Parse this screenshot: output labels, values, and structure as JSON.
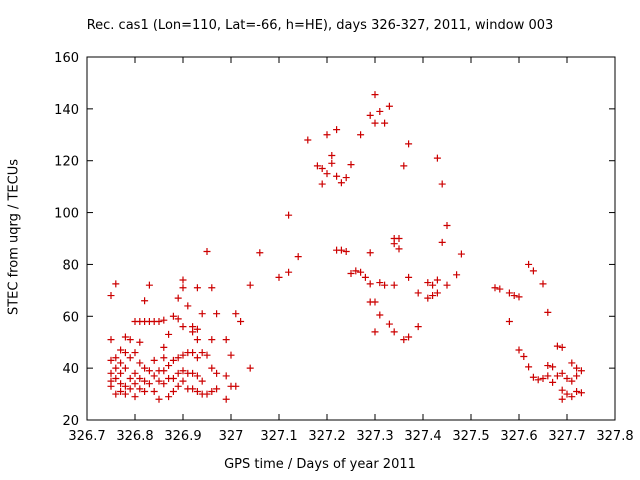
{
  "chart_data": {
    "type": "scatter",
    "title": "Rec. cas1 (Lon=110, Lat=-66, h=HE), days 326-327, 2011, window 003",
    "xlabel": "GPS time / Days of year 2011",
    "ylabel": "STEC from uqrg / TECUs",
    "xlim": [
      326.7,
      327.8
    ],
    "ylim": [
      20,
      160
    ],
    "x_ticks": [
      "326.7",
      "326.8",
      "326.9",
      "327",
      "327.1",
      "327.2",
      "327.3",
      "327.4",
      "327.5",
      "327.6",
      "327.7",
      "327.8"
    ],
    "y_ticks": [
      "20",
      "40",
      "60",
      "80",
      "100",
      "120",
      "140",
      "160"
    ],
    "marker": "+",
    "color": "#cc0000",
    "grid": false,
    "points": [
      [
        326.75,
        68
      ],
      [
        326.75,
        51
      ],
      [
        326.75,
        43
      ],
      [
        326.75,
        38
      ],
      [
        326.75,
        35
      ],
      [
        326.75,
        33
      ],
      [
        326.76,
        72.5
      ],
      [
        326.76,
        44
      ],
      [
        326.76,
        40
      ],
      [
        326.76,
        36
      ],
      [
        326.76,
        30
      ],
      [
        326.77,
        47
      ],
      [
        326.77,
        42
      ],
      [
        326.77,
        38
      ],
      [
        326.77,
        34
      ],
      [
        326.77,
        31
      ],
      [
        326.78,
        52
      ],
      [
        326.78,
        46
      ],
      [
        326.78,
        40
      ],
      [
        326.78,
        33
      ],
      [
        326.78,
        30
      ],
      [
        326.79,
        51
      ],
      [
        326.79,
        44
      ],
      [
        326.79,
        36
      ],
      [
        326.79,
        32
      ],
      [
        326.8,
        58
      ],
      [
        326.8,
        46
      ],
      [
        326.8,
        38
      ],
      [
        326.8,
        34
      ],
      [
        326.8,
        29
      ],
      [
        326.81,
        58
      ],
      [
        326.81,
        50
      ],
      [
        326.81,
        42
      ],
      [
        326.81,
        36
      ],
      [
        326.81,
        32
      ],
      [
        326.82,
        66
      ],
      [
        326.82,
        58
      ],
      [
        326.82,
        40
      ],
      [
        326.82,
        35
      ],
      [
        326.82,
        31
      ],
      [
        326.83,
        72
      ],
      [
        326.83,
        58
      ],
      [
        326.83,
        39
      ],
      [
        326.83,
        34
      ],
      [
        326.84,
        58
      ],
      [
        326.84,
        43
      ],
      [
        326.84,
        37
      ],
      [
        326.84,
        31
      ],
      [
        326.85,
        58
      ],
      [
        326.85,
        39
      ],
      [
        326.85,
        35
      ],
      [
        326.85,
        28
      ],
      [
        326.86,
        58.5
      ],
      [
        326.86,
        48
      ],
      [
        326.86,
        44
      ],
      [
        326.86,
        39
      ],
      [
        326.86,
        34
      ],
      [
        326.87,
        53
      ],
      [
        326.87,
        41
      ],
      [
        326.87,
        36
      ],
      [
        326.87,
        29
      ],
      [
        326.88,
        60
      ],
      [
        326.88,
        43
      ],
      [
        326.88,
        36
      ],
      [
        326.88,
        31
      ],
      [
        326.89,
        67
      ],
      [
        326.89,
        59
      ],
      [
        326.89,
        44
      ],
      [
        326.89,
        38
      ],
      [
        326.89,
        33
      ],
      [
        326.9,
        74
      ],
      [
        326.9,
        71
      ],
      [
        326.9,
        56
      ],
      [
        326.9,
        45
      ],
      [
        326.9,
        39
      ],
      [
        326.9,
        35
      ],
      [
        326.91,
        64
      ],
      [
        326.91,
        46
      ],
      [
        326.91,
        38
      ],
      [
        326.91,
        32
      ],
      [
        326.92,
        56
      ],
      [
        326.92,
        54
      ],
      [
        326.92,
        46
      ],
      [
        326.92,
        38
      ],
      [
        326.92,
        32
      ],
      [
        326.93,
        71
      ],
      [
        326.93,
        55
      ],
      [
        326.93,
        51
      ],
      [
        326.93,
        44
      ],
      [
        326.93,
        37
      ],
      [
        326.93,
        31
      ],
      [
        326.94,
        61
      ],
      [
        326.94,
        46
      ],
      [
        326.94,
        35
      ],
      [
        326.94,
        30
      ],
      [
        326.95,
        85
      ],
      [
        326.95,
        45
      ],
      [
        326.95,
        30
      ],
      [
        326.96,
        71
      ],
      [
        326.96,
        51
      ],
      [
        326.96,
        40
      ],
      [
        326.96,
        31
      ],
      [
        326.97,
        61
      ],
      [
        326.97,
        38
      ],
      [
        326.97,
        32
      ],
      [
        326.99,
        51
      ],
      [
        326.99,
        37
      ],
      [
        326.99,
        28
      ],
      [
        327.0,
        45
      ],
      [
        327.0,
        33
      ],
      [
        327.01,
        61
      ],
      [
        327.01,
        33
      ],
      [
        327.02,
        58
      ],
      [
        327.04,
        72
      ],
      [
        327.04,
        40
      ],
      [
        327.06,
        84.5
      ],
      [
        327.1,
        75
      ],
      [
        327.12,
        77
      ],
      [
        327.12,
        99
      ],
      [
        327.14,
        83
      ],
      [
        327.16,
        128
      ],
      [
        327.18,
        118
      ],
      [
        327.19,
        117
      ],
      [
        327.19,
        111
      ],
      [
        327.2,
        115
      ],
      [
        327.2,
        130
      ],
      [
        327.21,
        122
      ],
      [
        327.21,
        119
      ],
      [
        327.22,
        132
      ],
      [
        327.22,
        114
      ],
      [
        327.22,
        85.5
      ],
      [
        327.23,
        85.5
      ],
      [
        327.23,
        111.5
      ],
      [
        327.24,
        85
      ],
      [
        327.24,
        113.5
      ],
      [
        327.25,
        118.5
      ],
      [
        327.25,
        76.5
      ],
      [
        327.26,
        77.5
      ],
      [
        327.27,
        130
      ],
      [
        327.27,
        77
      ],
      [
        327.28,
        75
      ],
      [
        327.29,
        137.5
      ],
      [
        327.29,
        84.5
      ],
      [
        327.29,
        72.5
      ],
      [
        327.29,
        65.5
      ],
      [
        327.3,
        145.5
      ],
      [
        327.3,
        134.5
      ],
      [
        327.3,
        65.5
      ],
      [
        327.3,
        54
      ],
      [
        327.31,
        139
      ],
      [
        327.31,
        73
      ],
      [
        327.31,
        60.5
      ],
      [
        327.32,
        134.5
      ],
      [
        327.32,
        72
      ],
      [
        327.33,
        141
      ],
      [
        327.33,
        57
      ],
      [
        327.34,
        90
      ],
      [
        327.34,
        88
      ],
      [
        327.34,
        72
      ],
      [
        327.34,
        54
      ],
      [
        327.35,
        90
      ],
      [
        327.35,
        86
      ],
      [
        327.36,
        118
      ],
      [
        327.36,
        51
      ],
      [
        327.37,
        126.5
      ],
      [
        327.37,
        75
      ],
      [
        327.37,
        52
      ],
      [
        327.39,
        69
      ],
      [
        327.39,
        56
      ],
      [
        327.41,
        73
      ],
      [
        327.41,
        67
      ],
      [
        327.42,
        72
      ],
      [
        327.42,
        68
      ],
      [
        327.43,
        121
      ],
      [
        327.43,
        74
      ],
      [
        327.43,
        69
      ],
      [
        327.44,
        111
      ],
      [
        327.44,
        88.5
      ],
      [
        327.45,
        95
      ],
      [
        327.45,
        72
      ],
      [
        327.47,
        76
      ],
      [
        327.48,
        84
      ],
      [
        327.55,
        71
      ],
      [
        327.56,
        70.5
      ],
      [
        327.58,
        69
      ],
      [
        327.58,
        58
      ],
      [
        327.59,
        68
      ],
      [
        327.6,
        67.5
      ],
      [
        327.6,
        47
      ],
      [
        327.61,
        44.5
      ],
      [
        327.62,
        80
      ],
      [
        327.62,
        40.5
      ],
      [
        327.63,
        77.5
      ],
      [
        327.63,
        36.5
      ],
      [
        327.64,
        35.5
      ],
      [
        327.65,
        72.5
      ],
      [
        327.65,
        36
      ],
      [
        327.66,
        61.5
      ],
      [
        327.66,
        41
      ],
      [
        327.66,
        37
      ],
      [
        327.67,
        40.5
      ],
      [
        327.67,
        34.5
      ],
      [
        327.68,
        48.5
      ],
      [
        327.68,
        37
      ],
      [
        327.69,
        48
      ],
      [
        327.69,
        38
      ],
      [
        327.69,
        31.5
      ],
      [
        327.69,
        28
      ],
      [
        327.7,
        36
      ],
      [
        327.7,
        30
      ],
      [
        327.71,
        42
      ],
      [
        327.71,
        35
      ],
      [
        327.71,
        29
      ],
      [
        327.72,
        40
      ],
      [
        327.72,
        37
      ],
      [
        327.72,
        31
      ],
      [
        327.73,
        39
      ],
      [
        327.73,
        30.5
      ]
    ]
  }
}
